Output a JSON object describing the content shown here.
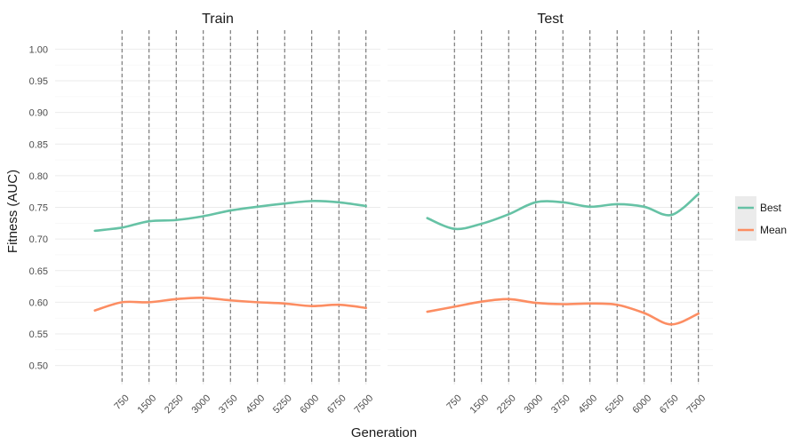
{
  "chart_data": {
    "type": "line",
    "xlabel": "Generation",
    "ylabel": "Fitness (AUC)",
    "ylim": [
      0.47,
      1.03
    ],
    "xlim": [
      -1100,
      7900
    ],
    "x_ticks": [
      750,
      1500,
      2250,
      3000,
      3750,
      4500,
      5250,
      6000,
      6750,
      7500
    ],
    "y_ticks": [
      0.5,
      0.55,
      0.6,
      0.65,
      0.7,
      0.75,
      0.8,
      0.85,
      0.9,
      0.95,
      1.0
    ],
    "vlines": [
      750,
      1500,
      2250,
      3000,
      3750,
      4500,
      5250,
      6000,
      6750,
      7500
    ],
    "grid": true,
    "legend": {
      "position": "right",
      "entries": [
        {
          "name": "Best",
          "color": "#66c2a5"
        },
        {
          "name": "Mean",
          "color": "#fc8d62"
        }
      ]
    },
    "facets": [
      {
        "title": "Train",
        "series": [
          {
            "name": "Best",
            "color": "#66c2a5",
            "x": [
              0,
              750,
              1500,
              2250,
              3000,
              3750,
              4500,
              5250,
              6000,
              6750,
              7500
            ],
            "y": [
              0.713,
              0.718,
              0.728,
              0.73,
              0.736,
              0.745,
              0.751,
              0.756,
              0.76,
              0.758,
              0.752
            ]
          },
          {
            "name": "Mean",
            "color": "#fc8d62",
            "x": [
              0,
              750,
              1500,
              2250,
              3000,
              3750,
              4500,
              5250,
              6000,
              6750,
              7500
            ],
            "y": [
              0.587,
              0.6,
              0.6,
              0.605,
              0.607,
              0.603,
              0.6,
              0.598,
              0.594,
              0.596,
              0.591
            ]
          }
        ]
      },
      {
        "title": "Test",
        "series": [
          {
            "name": "Best",
            "color": "#66c2a5",
            "x": [
              0,
              750,
              1500,
              2250,
              3000,
              3750,
              4500,
              5250,
              6000,
              6750,
              7500
            ],
            "y": [
              0.733,
              0.716,
              0.724,
              0.739,
              0.758,
              0.758,
              0.751,
              0.755,
              0.751,
              0.738,
              0.771
            ]
          },
          {
            "name": "Mean",
            "color": "#fc8d62",
            "x": [
              0,
              750,
              1500,
              2250,
              3000,
              3750,
              4500,
              5250,
              6000,
              6750,
              7500
            ],
            "y": [
              0.585,
              0.593,
              0.601,
              0.605,
              0.599,
              0.597,
              0.598,
              0.596,
              0.583,
              0.565,
              0.582
            ]
          }
        ]
      }
    ]
  }
}
